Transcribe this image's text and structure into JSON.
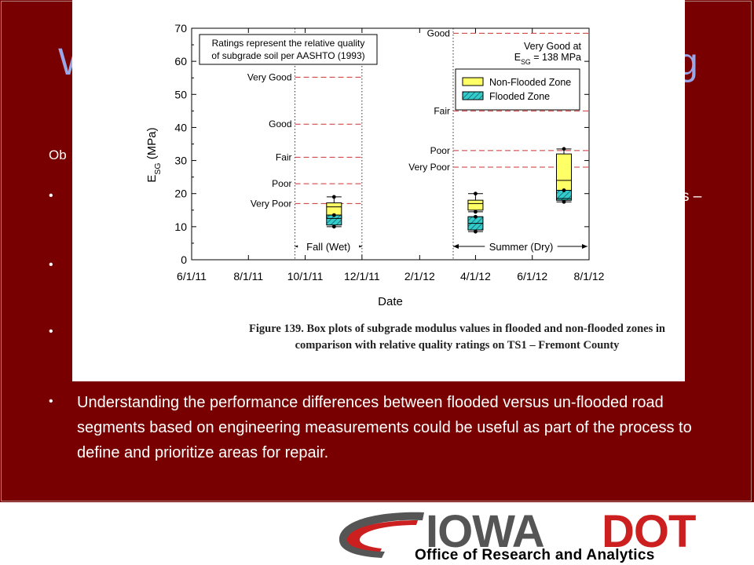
{
  "slide": {
    "title_left": "W",
    "title_right": "g",
    "objective_label": "Ob",
    "bullet_fragment": "s –",
    "bullet_4": "Understanding the performance differences between flooded versus un-flooded road segments based on engineering measurements could be useful as part of the process to define and prioritize areas for repair."
  },
  "footer": {
    "logo_iowa": "IOWA",
    "logo_dot": "DOT",
    "office": "Office of Research and Analytics"
  },
  "colors": {
    "slide_bg": "#780000",
    "title": "#9aa6e6",
    "non_flooded": "#ffff66",
    "flooded": "#33cccc",
    "rating_line": "#cc3333",
    "logo_red": "#cc1f1f",
    "logo_gray": "#555555"
  },
  "chart_data": {
    "type": "box",
    "ylabel": "E_SG (MPa)",
    "xlabel": "Date",
    "ylim": [
      0,
      70
    ],
    "yticks": [
      0,
      10,
      20,
      30,
      40,
      50,
      60,
      70
    ],
    "xlim": [
      "2011-06-01",
      "2012-08-01"
    ],
    "xtick_labels": [
      "6/1/11",
      "8/1/11",
      "10/1/11",
      "12/1/11",
      "2/1/12",
      "4/1/12",
      "6/1/12",
      "8/1/12"
    ],
    "xtick_dates": [
      "2011-06-01",
      "2011-08-01",
      "2011-10-01",
      "2011-12-01",
      "2012-02-01",
      "2012-04-01",
      "2012-06-01",
      "2012-08-01"
    ],
    "note": "Ratings represent the relative quality of subgrade soil per AASHTO (1993)",
    "annotation": "Very Good at E_SG = 138 MPa",
    "periods": [
      {
        "label": "Fall (Wet)",
        "start": "2011-09-20",
        "end": "2011-12-01"
      },
      {
        "label": "Summer (Dry)",
        "start": "2012-03-08",
        "end": "2012-08-01"
      }
    ],
    "ratings": [
      {
        "period": "Fall (Wet)",
        "levels": [
          {
            "label": "Very Good",
            "value": 55.2
          },
          {
            "label": "Good",
            "value": 41
          },
          {
            "label": "Fair",
            "value": 31
          },
          {
            "label": "Poor",
            "value": 23
          },
          {
            "label": "Very Poor",
            "value": 17
          }
        ]
      },
      {
        "period": "Summer (Dry)",
        "levels": [
          {
            "label": "Good",
            "value": 68.5
          },
          {
            "label": "Fair",
            "value": 45
          },
          {
            "label": "Poor",
            "value": 33
          },
          {
            "label": "Very Poor",
            "value": 28
          }
        ]
      }
    ],
    "series": [
      {
        "name": "Non-Flooded Zone",
        "boxes": [
          {
            "date": "2011-11-01",
            "min": 11.5,
            "q1": 12.5,
            "median": 16,
            "q3": 17.2,
            "max": 19
          },
          {
            "date": "2012-04-01",
            "min": 14.5,
            "q1": 15,
            "median": 17,
            "q3": 18,
            "max": 20
          },
          {
            "date": "2012-07-05",
            "min": 18,
            "q1": 18.5,
            "median": 24,
            "q3": 32,
            "max": 33.5
          }
        ]
      },
      {
        "name": "Flooded Zone",
        "boxes": [
          {
            "date": "2011-11-01",
            "min": 10,
            "q1": 10.5,
            "median": 12.5,
            "q3": 13.5,
            "max": 13.5
          },
          {
            "date": "2012-04-01",
            "min": 8.5,
            "q1": 9,
            "median": 11,
            "q3": 13,
            "max": 13
          },
          {
            "date": "2012-07-05",
            "min": 17.5,
            "q1": 18,
            "median": 18.5,
            "q3": 21,
            "max": 21
          }
        ]
      }
    ],
    "legend_position": "top-right"
  },
  "figure": {
    "caption_line1": "Figure 139. Box plots of subgrade modulus values in flooded and non-flooded zones in",
    "caption_line2": "comparison with relative quality ratings on TS1 – Fremont County"
  }
}
